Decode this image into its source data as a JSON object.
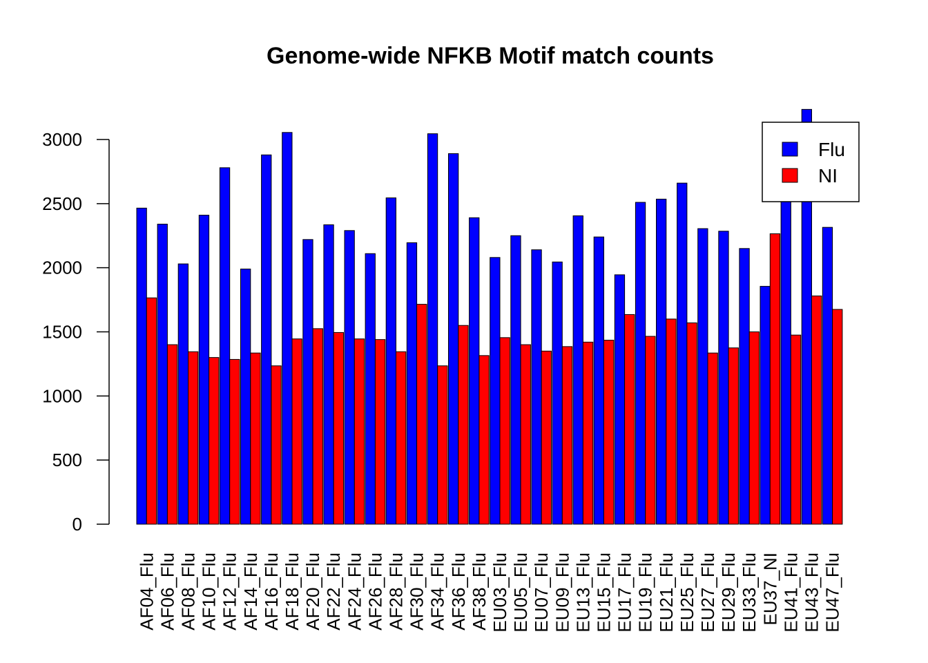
{
  "chart_data": {
    "type": "bar",
    "title": "Genome-wide NFKB Motif match counts",
    "xlabel": "",
    "ylabel": "",
    "ylim": [
      0,
      3250
    ],
    "yticks": [
      0,
      500,
      1000,
      1500,
      2000,
      2500,
      3000
    ],
    "grid": false,
    "legend_position": "top-right",
    "categories": [
      "AF04_Flu",
      "AF06_Flu",
      "AF08_Flu",
      "AF10_Flu",
      "AF12_Flu",
      "AF14_Flu",
      "AF16_Flu",
      "AF18_Flu",
      "AF20_Flu",
      "AF22_Flu",
      "AF24_Flu",
      "AF26_Flu",
      "AF28_Flu",
      "AF30_Flu",
      "AF34_Flu",
      "AF36_Flu",
      "AF38_Flu",
      "EU03_Flu",
      "EU05_Flu",
      "EU07_Flu",
      "EU09_Flu",
      "EU13_Flu",
      "EU15_Flu",
      "EU17_Flu",
      "EU19_Flu",
      "EU21_Flu",
      "EU25_Flu",
      "EU27_Flu",
      "EU29_Flu",
      "EU33_Flu",
      "EU37_NI",
      "EU41_Flu",
      "EU43_Flu",
      "EU47_Flu"
    ],
    "series": [
      {
        "name": "Flu",
        "color": "#0000ff",
        "values": [
          2465,
          2340,
          2030,
          2410,
          2780,
          1990,
          2880,
          3055,
          2220,
          2335,
          2290,
          2110,
          2545,
          2195,
          3045,
          2890,
          2390,
          2080,
          2250,
          2140,
          2045,
          2405,
          2240,
          1945,
          2510,
          2535,
          2660,
          2305,
          2285,
          2150,
          1855,
          2580,
          3235,
          2315
        ]
      },
      {
        "name": "NI",
        "color": "#ff0000",
        "values": [
          1765,
          1400,
          1345,
          1300,
          1285,
          1335,
          1235,
          1445,
          1525,
          1495,
          1445,
          1440,
          1345,
          1715,
          1235,
          1550,
          1315,
          1455,
          1400,
          1350,
          1385,
          1420,
          1435,
          1635,
          1465,
          1600,
          1570,
          1335,
          1375,
          1500,
          2265,
          1475,
          1780,
          1675
        ]
      }
    ]
  }
}
